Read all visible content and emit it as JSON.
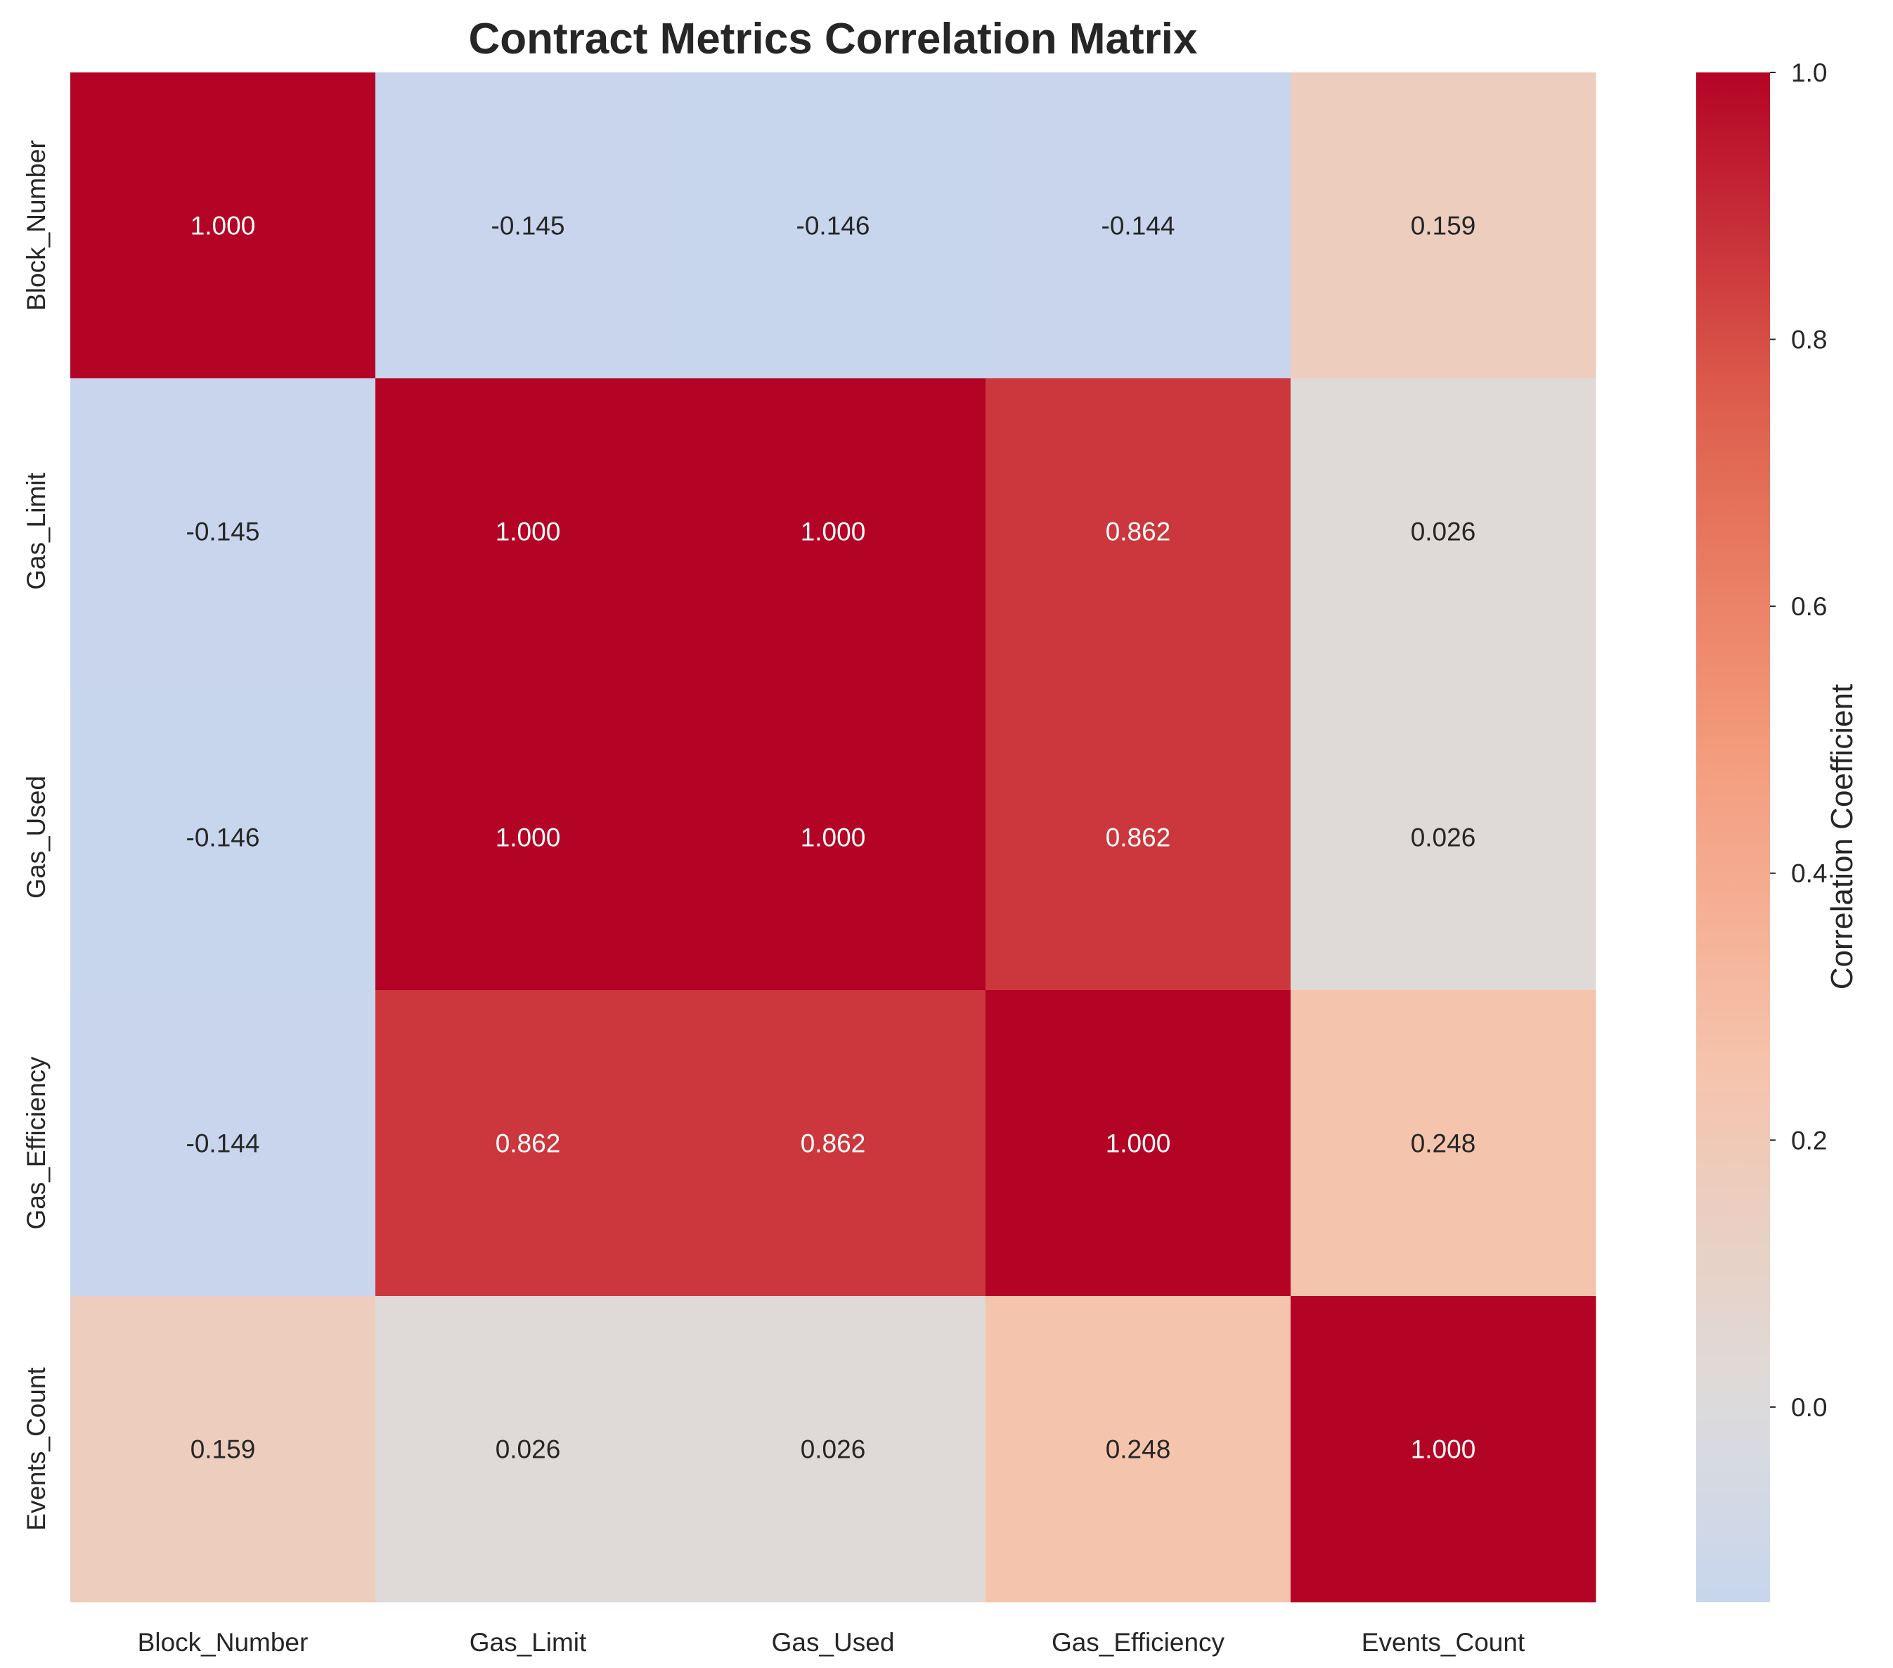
{
  "chart_data": {
    "type": "heatmap",
    "title": "Contract Metrics Correlation Matrix",
    "x_labels": [
      "Block_Number",
      "Gas_Limit",
      "Gas_Used",
      "Gas_Efficiency",
      "Events_Count"
    ],
    "y_labels": [
      "Block_Number",
      "Gas_Limit",
      "Gas_Used",
      "Gas_Efficiency",
      "Events_Count"
    ],
    "values": [
      [
        1.0,
        -0.145,
        -0.146,
        -0.144,
        0.159
      ],
      [
        -0.145,
        1.0,
        1.0,
        0.862,
        0.026
      ],
      [
        -0.146,
        1.0,
        1.0,
        0.862,
        0.026
      ],
      [
        -0.144,
        0.862,
        0.862,
        1.0,
        0.248
      ],
      [
        0.159,
        0.026,
        0.026,
        0.248,
        1.0
      ]
    ],
    "cell_labels": [
      [
        "1.000",
        "-0.145",
        "-0.146",
        "-0.144",
        "0.159"
      ],
      [
        "-0.145",
        "1.000",
        "1.000",
        "0.862",
        "0.026"
      ],
      [
        "-0.146",
        "1.000",
        "1.000",
        "0.862",
        "0.026"
      ],
      [
        "-0.144",
        "0.862",
        "0.862",
        "1.000",
        "0.248"
      ],
      [
        "0.159",
        "0.026",
        "0.026",
        "0.248",
        "1.000"
      ]
    ],
    "colormap": "coolwarm",
    "color_center": 0,
    "color_range": [
      -0.146,
      1.0
    ],
    "colorbar": {
      "label": "Correlation Coefficient",
      "ticks": [
        1.0,
        0.8,
        0.6,
        0.4,
        0.2,
        0.0
      ],
      "tick_labels": [
        "1.0",
        "0.8",
        "0.6",
        "0.4",
        "0.2",
        "0.0"
      ],
      "position": "right"
    },
    "colors": {
      "neg_end": "#3b4cc0",
      "neutral": "#dddcdc",
      "pos_end": "#b40426",
      "text_dark": "#262626",
      "text_light": "#ffffff"
    },
    "grid": false
  }
}
